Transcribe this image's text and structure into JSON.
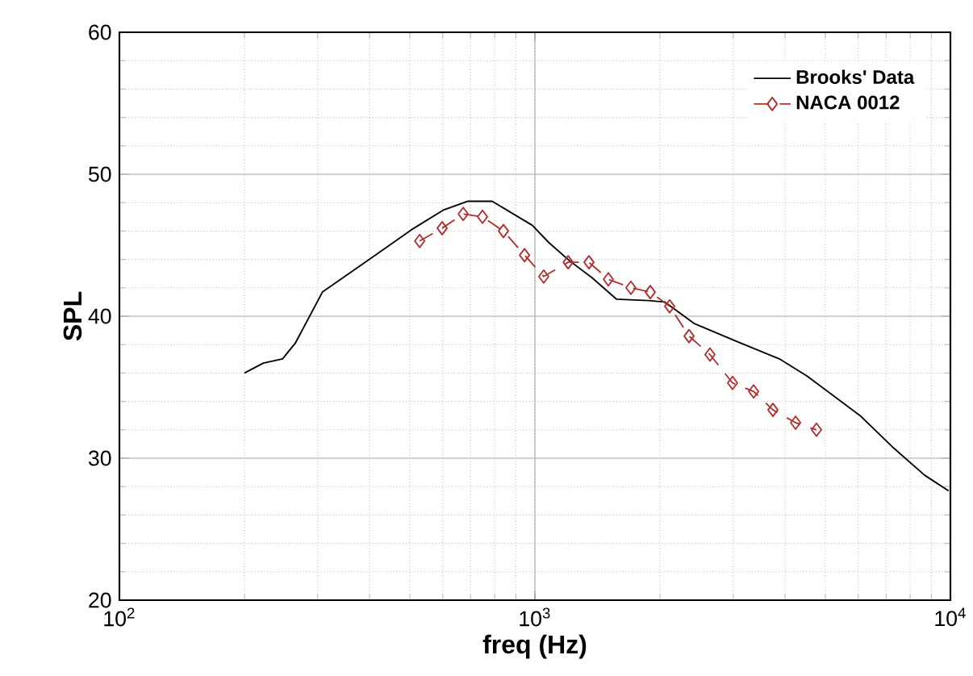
{
  "chart_data": {
    "type": "line",
    "xlabel": "freq (Hz)",
    "ylabel": "SPL",
    "log": "x",
    "grid": true,
    "legend": "top right",
    "xlim": [
      100,
      10000
    ],
    "ylim": [
      20,
      60
    ],
    "xticks": [
      {
        "value": 100,
        "label": "10$^{2}$"
      },
      {
        "value": 1000,
        "label": "10$^{3}$"
      },
      {
        "value": 10000,
        "label": "10$^{4}$"
      }
    ],
    "yticks": [
      20,
      30,
      40,
      50,
      60
    ],
    "series": [
      {
        "name": "Brooks' Data",
        "color": "#000000",
        "line_style": "solid",
        "marker": "none",
        "x": [
          200,
          222,
          247,
          265,
          308,
          404,
          505,
          604,
          690,
          789,
          986,
          1079,
          1212,
          1374,
          1571,
          1878,
          2055,
          2413,
          3072,
          3873,
          4513,
          6060,
          7250,
          8670,
          9900
        ],
        "values": [
          36.0,
          36.7,
          37.0,
          38.1,
          41.7,
          44.1,
          46.1,
          47.5,
          48.1,
          48.1,
          46.4,
          45.2,
          43.9,
          42.7,
          41.2,
          41.1,
          41.0,
          39.5,
          38.2,
          37.0,
          35.8,
          33.0,
          30.8,
          28.8,
          27.7
        ]
      },
      {
        "name": "NACA 0012",
        "color": "#b03030",
        "line_style": "dashed",
        "marker": "diamond",
        "x": [
          528,
          598,
          672,
          748,
          840,
          944,
          1050,
          1202,
          1349,
          1502,
          1702,
          1895,
          2110,
          2349,
          2638,
          2990,
          3360,
          3740,
          4240,
          4760
        ],
        "values": [
          45.3,
          46.2,
          47.2,
          47.0,
          46.0,
          44.3,
          42.8,
          43.8,
          43.8,
          42.6,
          42.0,
          41.7,
          40.7,
          38.6,
          37.3,
          35.3,
          34.7,
          33.4,
          32.5,
          32.0
        ]
      }
    ]
  }
}
